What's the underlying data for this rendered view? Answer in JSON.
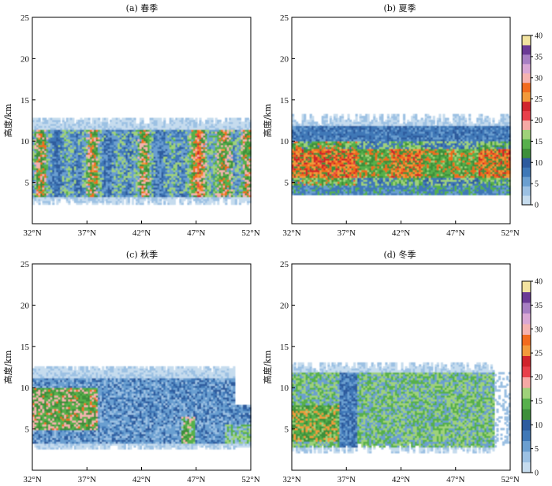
{
  "figure": {
    "colorbar": {
      "min": 0,
      "max": 40,
      "ticks": [
        "0",
        "5",
        "10",
        "15",
        "20",
        "25",
        "30",
        "35",
        "40"
      ],
      "colors": [
        "#c6dcee",
        "#9cc1e3",
        "#6b9fd0",
        "#3f78b7",
        "#2d5b9e",
        "#3d8f3a",
        "#57b04c",
        "#9fd27a",
        "#f5a9a5",
        "#e8404a",
        "#d0242c",
        "#f39a3b",
        "#f26b1e",
        "#f5b3b0",
        "#d9a7d4",
        "#a87fc3",
        "#6b3a95",
        "#f2e3a0"
      ]
    },
    "panels": [
      {
        "title": "(a) 春季",
        "ylabel": "高度/km",
        "xticks": [
          "32°N",
          "37°N",
          "42°N",
          "47°N",
          "52°N"
        ],
        "yticks": [
          "5",
          "10",
          "15",
          "20",
          "25"
        ],
        "xlim": [
          32,
          52
        ],
        "ylim": [
          0,
          25
        ],
        "chart_data": {
          "type": "heatmap",
          "x_range": [
            32,
            52
          ],
          "y_range": [
            0,
            25
          ],
          "cloud_base_km": 3.0,
          "cloud_top_km": 12.5,
          "summary": "Cloud reflectivity (dBZ) cross-section; strong echoes (15-30 dBZ) between 4 and 10 km across all latitudes, maxima near 48-50°N"
        }
      },
      {
        "title": "(b) 夏季",
        "ylabel": "高度/km",
        "xticks": [
          "32°N",
          "37°N",
          "42°N",
          "47°N",
          "52°N"
        ],
        "yticks": [
          "5",
          "10",
          "15",
          "20",
          "25"
        ],
        "xlim": [
          32,
          52
        ],
        "ylim": [
          0,
          25
        ],
        "chart_data": {
          "type": "heatmap",
          "x_range": [
            32,
            52
          ],
          "y_range": [
            0,
            25
          ],
          "cloud_base_km": 4.0,
          "cloud_top_km": 13.0,
          "summary": "Cloud reflectivity (dBZ); continuous green/red layer 5-10 km, stronger south of 40°N and around 43-45°N"
        }
      },
      {
        "title": "(c) 秋季",
        "ylabel": "高度/km",
        "xticks": [
          "32°N",
          "37°N",
          "42°N",
          "47°N",
          "52°N"
        ],
        "yticks": [
          "5",
          "10",
          "15",
          "20",
          "25"
        ],
        "xlim": [
          32,
          52
        ],
        "ylim": [
          0,
          25
        ],
        "chart_data": {
          "type": "heatmap",
          "x_range": [
            32,
            52
          ],
          "y_range": [
            0,
            25
          ],
          "cloud_base_km": 3.0,
          "cloud_top_km": 12.5,
          "summary": "Cloud reflectivity (dBZ); mostly weak blue echoes with stronger red/orange south of 38°N"
        }
      },
      {
        "title": "(d) 冬季",
        "ylabel": "高度/km",
        "xticks": [
          "32°N",
          "37°N",
          "42°N",
          "47°N",
          "52°N"
        ],
        "yticks": [
          "5",
          "10",
          "15",
          "20",
          "25"
        ],
        "xlim": [
          32,
          52
        ],
        "ylim": [
          0,
          25
        ],
        "chart_data": {
          "type": "heatmap",
          "x_range": [
            32,
            52
          ],
          "y_range": [
            0,
            25
          ],
          "cloud_base_km": 2.5,
          "cloud_top_km": 12.5,
          "summary": "Cloud reflectivity (dBZ); green echoes 3-10 km, red near 33-35°N, blue band near 37-38°N"
        }
      }
    ]
  }
}
